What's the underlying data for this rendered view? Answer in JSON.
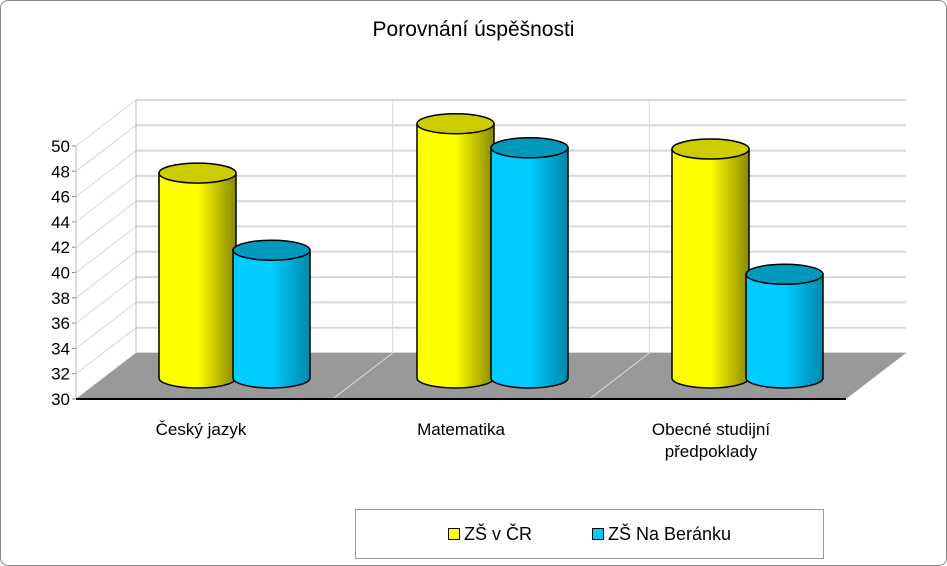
{
  "chart_data": {
    "type": "bar",
    "title": "Porovnání úspěšnosti",
    "categories": [
      "Český jazyk",
      "Matematika",
      "Obecné studijní předpoklady"
    ],
    "series": [
      {
        "name": "ZŠ v ČR",
        "color": "#ffff00",
        "top_color": "#cccc00",
        "values": [
          46.2,
          50.1,
          48.1
        ]
      },
      {
        "name": "ZŠ Na Beránku",
        "color": "#00ccff",
        "top_color": "#0099bb",
        "values": [
          40.1,
          48.2,
          38.2
        ]
      }
    ],
    "ylim": [
      30,
      50
    ],
    "yticks": [
      30,
      32,
      34,
      36,
      38,
      40,
      42,
      44,
      46,
      48,
      50
    ],
    "xlabel": "",
    "ylabel": "",
    "grid": true,
    "legend": "bottom"
  }
}
